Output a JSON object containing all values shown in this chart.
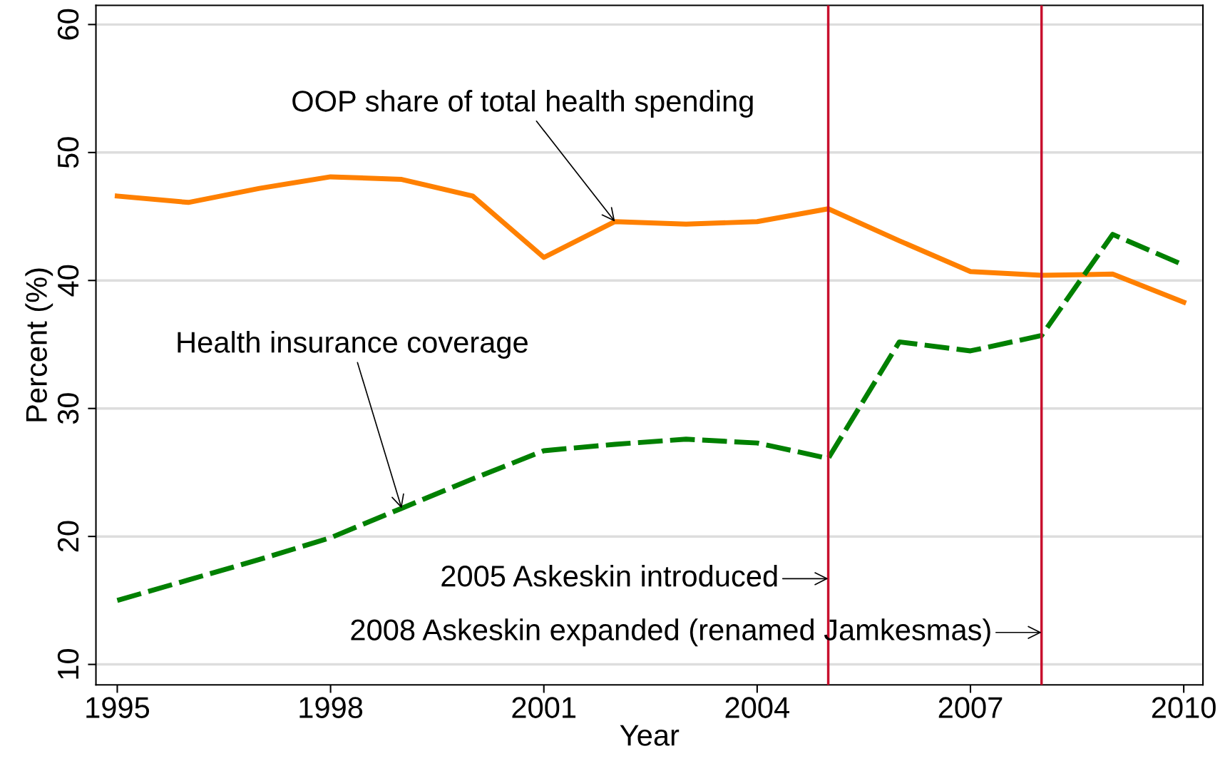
{
  "chart_data": {
    "type": "line",
    "xlabel": "Year",
    "ylabel": "Percent (%)",
    "x": [
      1995,
      1996,
      1997,
      1998,
      1999,
      2000,
      2001,
      2002,
      2003,
      2004,
      2005,
      2006,
      2007,
      2008,
      2009,
      2010
    ],
    "series": [
      {
        "color": "#ff8000",
        "line_style": "solid",
        "values": [
          46.6,
          46.1,
          47.2,
          48.1,
          47.9,
          46.6,
          41.8,
          44.6,
          44.4,
          44.6,
          45.6,
          43.1,
          40.7,
          40.4,
          40.5,
          38.3
        ]
      },
      {
        "color": "#008000",
        "line_style": "dashed",
        "values": [
          15.0,
          16.6,
          18.2,
          19.9,
          22.2,
          24.5,
          26.7,
          27.2,
          27.6,
          27.3,
          26.1,
          35.2,
          34.5,
          35.7,
          43.6,
          41.2
        ]
      }
    ],
    "xlim": [
      1994.7,
      2010.27
    ],
    "xticks": [
      1995,
      1998,
      2001,
      2004,
      2007,
      2010
    ],
    "ylim": [
      8.4,
      61.5
    ],
    "yticks": [
      10,
      20,
      30,
      40,
      50,
      60
    ],
    "grid": "y",
    "legend": false,
    "marker": "none",
    "ref_lines": [
      {
        "axis": "x",
        "value": 2005,
        "color": "#c8102e"
      },
      {
        "axis": "x",
        "value": 2008,
        "color": "#c8102e"
      }
    ],
    "annotations": [
      {
        "text": "OOP share of total health spending",
        "x": 2002,
        "y": 44.6
      },
      {
        "text": "Health insurance coverage",
        "x": 1999,
        "y": 22.2
      },
      {
        "text": "2005 Askeskin introduced",
        "x": 2005,
        "y": 16.7
      },
      {
        "text": "2008 Askeskin expanded (renamed Jamkesmas)",
        "x": 2008,
        "y": 12.5
      }
    ]
  }
}
